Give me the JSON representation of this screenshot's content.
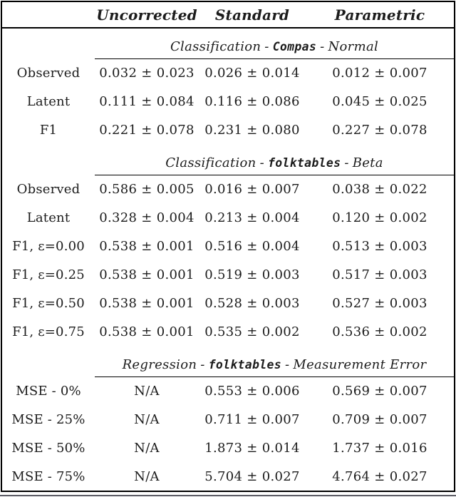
{
  "table": {
    "header": {
      "label": "",
      "uncorrected": "Uncorrected",
      "standard": "Standard",
      "parametric": "Parametric"
    },
    "sections": [
      {
        "title": {
          "lead": "Classification",
          "sep1": "-",
          "code": "Compas",
          "sep2": "-",
          "tail": "Normal"
        },
        "rows": [
          {
            "label": "Observed",
            "uncorrected": "0.032 ± 0.023",
            "standard": "0.026 ± 0.014",
            "parametric": "0.012 ± 0.007"
          },
          {
            "label": "Latent",
            "uncorrected": "0.111 ± 0.084",
            "standard": "0.116 ± 0.086",
            "parametric": "0.045 ± 0.025"
          },
          {
            "label": "F1",
            "uncorrected": "0.221 ± 0.078",
            "standard": "0.231 ± 0.080",
            "parametric": "0.227 ± 0.078"
          }
        ]
      },
      {
        "title": {
          "lead": "Classification",
          "sep1": "-",
          "code": "folktables",
          "sep2": "-",
          "tail": "Beta"
        },
        "rows": [
          {
            "label": "Observed",
            "uncorrected": "0.586 ± 0.005",
            "standard": "0.016 ± 0.007",
            "parametric": "0.038 ± 0.022"
          },
          {
            "label": "Latent",
            "uncorrected": "0.328 ± 0.004",
            "standard": "0.213 ± 0.004",
            "parametric": "0.120 ± 0.002"
          },
          {
            "label": "F1, ε=0.00",
            "uncorrected": "0.538 ± 0.001",
            "standard": "0.516 ± 0.004",
            "parametric": "0.513 ± 0.003"
          },
          {
            "label": "F1, ε=0.25",
            "uncorrected": "0.538 ± 0.001",
            "standard": "0.519 ± 0.003",
            "parametric": "0.517 ± 0.003"
          },
          {
            "label": "F1, ε=0.50",
            "uncorrected": "0.538 ± 0.001",
            "standard": "0.528 ± 0.003",
            "parametric": "0.527 ± 0.003"
          },
          {
            "label": "F1, ε=0.75",
            "uncorrected": "0.538 ± 0.001",
            "standard": "0.535 ± 0.002",
            "parametric": "0.536 ± 0.002"
          }
        ]
      },
      {
        "title": {
          "lead": "Regression",
          "sep1": "-",
          "code": "folktables",
          "sep2": "-",
          "tail": "Measurement Error"
        },
        "rows": [
          {
            "label": "MSE - 0%",
            "uncorrected": "N/A",
            "standard": "0.553 ± 0.006",
            "parametric": "0.569 ± 0.007"
          },
          {
            "label": "MSE - 25%",
            "uncorrected": "N/A",
            "standard": "0.711 ± 0.007",
            "parametric": "0.709 ± 0.007"
          },
          {
            "label": "MSE - 50%",
            "uncorrected": "N/A",
            "standard": "1.873 ± 0.014",
            "parametric": "1.737 ± 0.016"
          },
          {
            "label": "MSE - 75%",
            "uncorrected": "N/A",
            "standard": "5.704 ± 0.027",
            "parametric": "4.764 ± 0.027"
          }
        ]
      }
    ]
  }
}
